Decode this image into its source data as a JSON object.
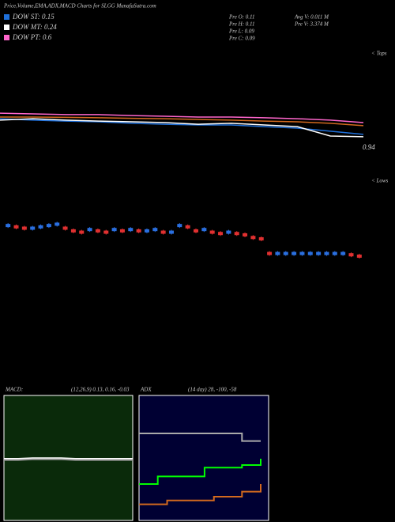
{
  "title": "Price,Volume,EMA,ADX,MACD Charts for SLGG MunafaSutra.com",
  "legend": [
    {
      "label": "DOW ST: 0.15",
      "color": "#1e6fd9"
    },
    {
      "label": "DOW MT: 0.24",
      "color": "#ffffff"
    },
    {
      "label": "DOW PT: 0.6",
      "color": "#ff66cc"
    }
  ],
  "stats": [
    "Pre O: 0.11",
    "Pre H: 0.11",
    "Pre L: 0.09",
    "Pre C: 0.09",
    "Avg V: 0.011 M",
    "Pre V: 3.374 M"
  ],
  "side_labels": [
    "< Tops",
    "< Lows"
  ],
  "chart_data": [
    {
      "type": "candlestick",
      "categories": [
        null,
        null,
        null,
        null,
        null,
        null,
        null,
        null,
        null,
        null,
        null,
        null,
        null,
        null,
        null,
        null,
        null,
        null,
        null,
        null,
        null,
        null,
        null,
        null,
        null,
        null,
        null,
        null,
        null,
        null,
        null,
        null,
        null,
        null,
        null,
        null,
        null,
        null,
        null,
        null,
        null,
        null,
        null,
        null
      ],
      "values": [
        0.112,
        0.111,
        0.11,
        0.11,
        0.111,
        0.112,
        0.113,
        0.11,
        0.108,
        0.107,
        0.109,
        0.108,
        0.107,
        0.109,
        0.108,
        0.109,
        0.108,
        0.108,
        0.109,
        0.107,
        0.107,
        0.112,
        0.111,
        0.108,
        0.109,
        0.107,
        0.106,
        0.107,
        0.106,
        0.105,
        0.103,
        0.102,
        0.091,
        0.091,
        0.091,
        0.091,
        0.091,
        0.091,
        0.091,
        0.091,
        0.091,
        0.091,
        0.09,
        0.089
      ],
      "ylim": [
        0.08,
        0.14
      ]
    },
    {
      "type": "line",
      "label": "0.94",
      "ylim": [
        0.8,
        1.1
      ],
      "series": [
        {
          "color": "#ff66cc",
          "values": [
            1.044,
            1.04,
            1.036,
            1.036,
            1.031,
            1.027,
            1.023,
            1.023,
            1.019,
            1.014,
            1.006,
            0.993
          ]
        },
        {
          "color": "#d2691e",
          "values": [
            1.023,
            1.023,
            1.021,
            1.019,
            1.016,
            1.014,
            1.01,
            1.006,
            1.001,
            0.997,
            0.989,
            0.976
          ]
        },
        {
          "color": "#1e6fd9",
          "values": [
            1.014,
            1.006,
            1.001,
            0.997,
            0.989,
            0.984,
            0.98,
            0.98,
            0.971,
            0.963,
            0.946,
            0.929
          ]
        },
        {
          "color": "#ffffff",
          "values": [
            1.006,
            1.014,
            1.006,
            1.001,
            0.997,
            0.993,
            0.984,
            0.989,
            0.98,
            0.971,
            0.92,
            0.916
          ]
        }
      ]
    },
    {
      "type": "line",
      "title": "MACD:",
      "subtitle": "(12,26,9) 0.13, 0.16, -0.03",
      "ylim": [
        -1,
        1
      ],
      "series": [
        {
          "color": "#ffffff",
          "values": [
            0.0,
            0.0,
            0.01,
            0.01,
            0.01,
            0.0,
            0.0,
            0.0,
            0.0,
            0.0
          ]
        },
        {
          "color": "#999999",
          "values": [
            -0.02,
            -0.02,
            -0.01,
            -0.01,
            -0.01,
            -0.02,
            -0.02,
            -0.02,
            -0.02,
            -0.02
          ]
        }
      ]
    },
    {
      "type": "line",
      "title": "ADX",
      "subtitle": "(14 day) 28, -100, -58",
      "ylim": [
        0,
        100
      ],
      "series": [
        {
          "color": "#aaaaaa",
          "values": [
            70,
            70,
            70,
            70,
            70,
            70,
            70,
            70,
            70,
            70,
            70,
            64,
            64,
            64
          ]
        },
        {
          "color": "#00ff00",
          "values": [
            30,
            30,
            36,
            36,
            36,
            36,
            36,
            43,
            43,
            43,
            43,
            45,
            45,
            50
          ]
        },
        {
          "color": "#d2691e",
          "values": [
            14,
            14,
            14,
            17,
            17,
            17,
            17,
            17,
            20,
            20,
            20,
            24,
            24,
            30
          ]
        }
      ]
    }
  ]
}
